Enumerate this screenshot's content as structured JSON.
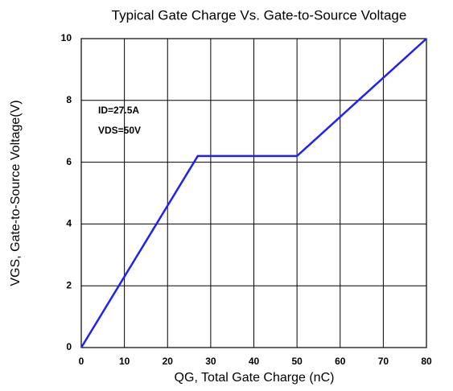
{
  "chart_data": {
    "type": "line",
    "title": "Typical Gate Charge  Vs. Gate-to-Source Voltage",
    "xlabel": "QG, Total Gate Charge (nC)",
    "ylabel": "VGS, Gate-to-Source Voltage(V)",
    "annotations": [
      "ID=27.5A",
      "VDS=50V"
    ],
    "x": [
      0,
      27,
      50,
      80
    ],
    "series": [
      {
        "color": "#1f1fff",
        "values": [
          0,
          6.2,
          6.2,
          10
        ]
      }
    ],
    "xlim": [
      0,
      80
    ],
    "xticks": [
      0,
      10,
      20,
      30,
      40,
      50,
      60,
      70,
      80
    ],
    "ylim": [
      0,
      10
    ],
    "yticks": [
      0,
      2,
      4,
      6,
      8,
      10
    ],
    "grid": true
  }
}
